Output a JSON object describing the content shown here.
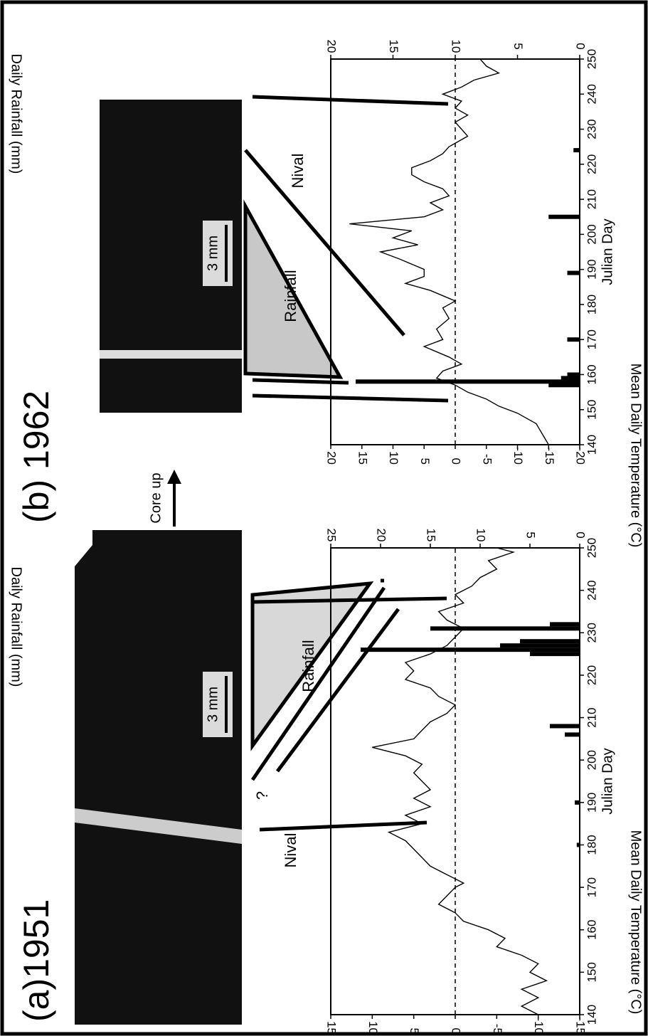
{
  "chart_data": [
    {
      "type": "line",
      "title": "(a)1951",
      "xlabel": "Julian Day",
      "ylabel": "Mean Daily Temperature (°C)",
      "y2label": "Daily Rainfall (mm)",
      "xlim": [
        140,
        250
      ],
      "xticks": [
        140,
        150,
        160,
        170,
        180,
        190,
        200,
        210,
        220,
        230,
        240,
        250
      ],
      "ylim": [
        -15,
        15
      ],
      "yticks": [
        -15,
        -10,
        -5,
        0,
        5,
        10,
        15
      ],
      "y2lim": [
        0,
        25
      ],
      "y2ticks": [
        0,
        5,
        10,
        15,
        20,
        25
      ],
      "hlines": [
        0
      ],
      "annotations": [
        "Nival",
        "Rainfall",
        "?",
        "3 mm"
      ],
      "series": [
        {
          "type": "line",
          "color": "#000000",
          "x": [
            140,
            142,
            144,
            146,
            148,
            150,
            152,
            154,
            156,
            158,
            160,
            162,
            164,
            166,
            168,
            170,
            171,
            173,
            175,
            177,
            179,
            181,
            183,
            185,
            187,
            189,
            191,
            193,
            195,
            197,
            199,
            201,
            203,
            205,
            207,
            209,
            211,
            213,
            215,
            217,
            219,
            221,
            223,
            225,
            227,
            229,
            231,
            233,
            235,
            237,
            239,
            241,
            243,
            245,
            247,
            249,
            250
          ],
          "values": [
            -10,
            -8,
            -10,
            -8,
            -11,
            -9,
            -10,
            -8,
            -5,
            -6,
            -4,
            -1,
            0,
            2,
            1,
            0,
            -1,
            1,
            3,
            4,
            5,
            6,
            8,
            4,
            6,
            3,
            5,
            3,
            4,
            5,
            4,
            6,
            10,
            5,
            4,
            3,
            1,
            0,
            2,
            3,
            6,
            5,
            6,
            3,
            1,
            0,
            -1,
            1,
            2,
            -1,
            0,
            -2,
            -3,
            -5,
            -4,
            -7,
            -5
          ]
        },
        {
          "type": "bar",
          "axis": "y2",
          "color": "#000000",
          "x": [
            180,
            190,
            206,
            208,
            225,
            226,
            227,
            228,
            231,
            232
          ],
          "values": [
            0.3,
            0.5,
            1.5,
            3,
            5,
            22,
            8,
            6,
            15,
            3
          ]
        }
      ]
    },
    {
      "type": "line",
      "title": "(b) 1962",
      "xlabel": "Julian Day",
      "ylabel": "Mean Daily Temperature (°C)",
      "y2label": "Daily Rainfall (mm)",
      "xlim": [
        140,
        250
      ],
      "xticks": [
        140,
        150,
        160,
        170,
        180,
        190,
        200,
        210,
        220,
        230,
        240,
        250
      ],
      "ylim": [
        -20,
        20
      ],
      "yticks": [
        -20,
        -15,
        -10,
        -5,
        0,
        5,
        10,
        15,
        20
      ],
      "y2lim": [
        0,
        20
      ],
      "y2ticks": [
        0,
        5,
        10,
        15,
        20
      ],
      "hlines": [
        0
      ],
      "annotations": [
        "Nival",
        "Rainfall",
        "3 mm"
      ],
      "series": [
        {
          "type": "line",
          "color": "#000000",
          "x": [
            140,
            143,
            146,
            149,
            151,
            153,
            155,
            157,
            159,
            161,
            163,
            165,
            168,
            170,
            173,
            176,
            179,
            181,
            184,
            186,
            188,
            190,
            193,
            195,
            197,
            199,
            201,
            203,
            205,
            207,
            209,
            211,
            213,
            215,
            217,
            219,
            221,
            223,
            225,
            228,
            230,
            232,
            234,
            236,
            238,
            240,
            242,
            244,
            246,
            248,
            250
          ],
          "values": [
            -15,
            -14,
            -13,
            -10,
            -7,
            -5,
            -2,
            0,
            3,
            2,
            -1,
            1,
            5,
            2,
            3,
            1,
            2,
            0,
            4,
            8,
            5,
            5,
            9,
            12,
            6,
            10,
            7,
            17,
            5,
            2,
            4,
            1,
            2,
            5,
            7,
            7,
            4,
            2,
            1,
            -2,
            -1,
            0,
            -2,
            0,
            -1,
            2,
            -1,
            -3,
            -7,
            -5,
            -4
          ]
        },
        {
          "type": "bar",
          "axis": "y2",
          "color": "#000000",
          "x": [
            157,
            158,
            159,
            160,
            170,
            189,
            205,
            224
          ],
          "values": [
            2.5,
            18,
            1.5,
            1,
            1,
            1,
            2.5,
            0.5
          ]
        }
      ]
    }
  ],
  "core_label": "Core up"
}
